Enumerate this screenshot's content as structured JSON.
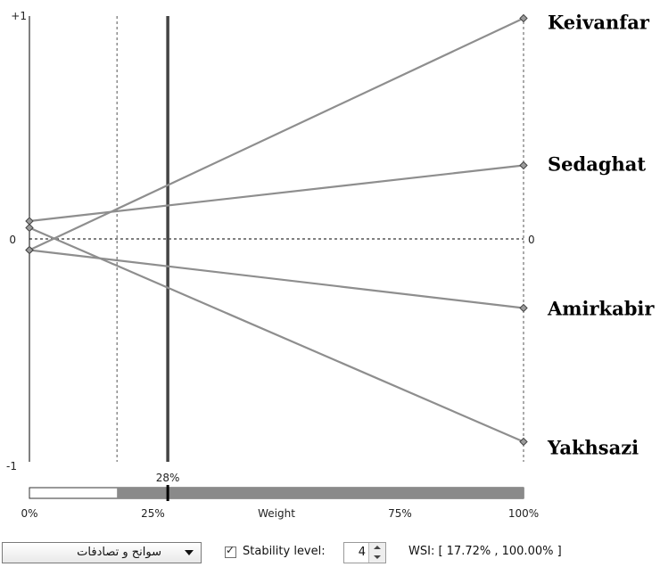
{
  "chart_data": {
    "type": "line",
    "title": "",
    "xlabel": "Weight",
    "ylabel": "",
    "xlim": [
      0,
      100
    ],
    "ylim": [
      -1,
      1
    ],
    "x_ticks": [
      "0%",
      "25%",
      "75%",
      "100%"
    ],
    "y_tick_labels": {
      "top": "+1",
      "zero": "0",
      "bottom": "-1"
    },
    "right_zero_label": "0",
    "series": [
      {
        "name": "Keivanfar",
        "x": [
          0,
          100
        ],
        "y": [
          -0.05,
          0.99
        ]
      },
      {
        "name": "Sedaghat",
        "x": [
          0,
          100
        ],
        "y": [
          0.08,
          0.33
        ]
      },
      {
        "name": "Amirkabir",
        "x": [
          0,
          100
        ],
        "y": [
          -0.05,
          -0.31
        ]
      },
      {
        "name": "Yakhsazi",
        "x": [
          0,
          100
        ],
        "y": [
          0.05,
          -0.91
        ]
      }
    ],
    "current_weight": 28,
    "current_weight_label": "28%",
    "stability_interval": [
      17.72,
      100
    ],
    "grid": false,
    "zero_line": "dashed"
  },
  "controls": {
    "criterion_selected": "سوانح و تصادفات",
    "stability_checked": true,
    "stability_label": "Stability level:",
    "stability_value": "4",
    "wsi_text": "WSI: [ 17.72% , 100.00% ]"
  },
  "colors": {
    "series_line": "#8e8e8e",
    "weight_marker": "#444444",
    "stable_range": "#8a8a8a",
    "marker_fill": "#9b9b9b"
  }
}
